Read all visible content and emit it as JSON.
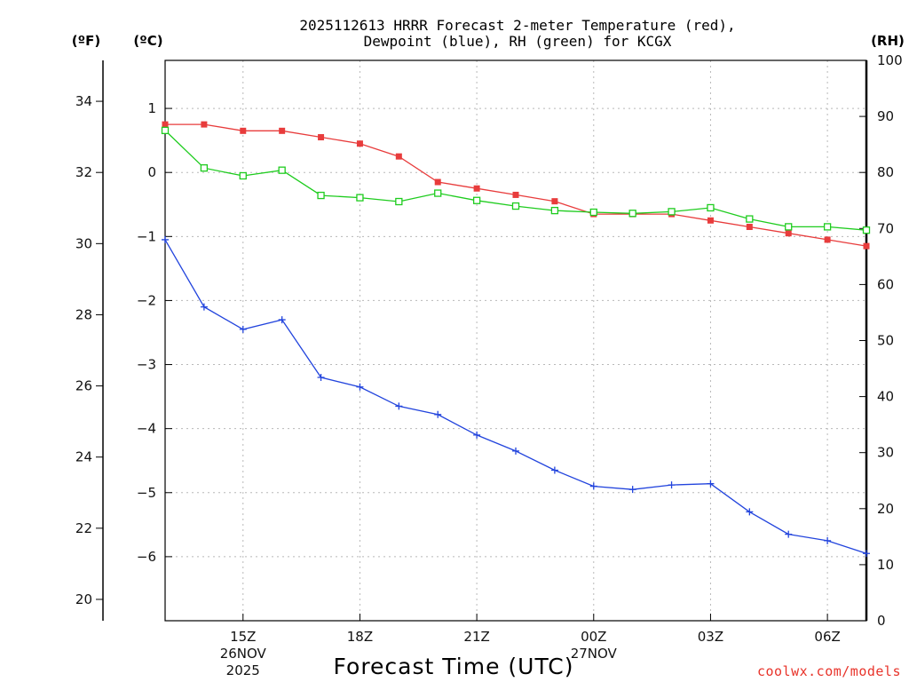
{
  "chart_data": {
    "type": "line",
    "title_line1": "2025112613 HRRR Forecast 2-meter Temperature (red),",
    "title_line2": "Dewpoint (blue), RH (green) for KCGX",
    "xlabel": "Forecast Time (UTC)",
    "credit": "coolwx.com/models",
    "units": {
      "f": "(ºF)",
      "c": "(ºC)",
      "rh": "(RH)"
    },
    "x_hours": [
      13,
      14,
      15,
      16,
      17,
      18,
      19,
      20,
      21,
      22,
      23,
      24,
      25,
      26,
      27,
      28,
      29,
      30,
      31
    ],
    "xlim": [
      13,
      31
    ],
    "x_ticks": [
      {
        "hour": 15,
        "label": "15Z",
        "date": "26NOV",
        "year": "2025"
      },
      {
        "hour": 18,
        "label": "18Z"
      },
      {
        "hour": 21,
        "label": "21Z"
      },
      {
        "hour": 24,
        "label": "00Z",
        "date": "27NOV"
      },
      {
        "hour": 27,
        "label": "03Z"
      },
      {
        "hour": 30,
        "label": "06Z"
      }
    ],
    "celsius_axis": {
      "ylim": [
        -7,
        1.75
      ],
      "ticks": [
        "1",
        "0",
        "−1",
        "−2",
        "−3",
        "−4",
        "−5",
        "−6"
      ]
    },
    "fahrenheit_axis": {
      "ticks": [
        "34",
        "32",
        "30",
        "28",
        "26",
        "24",
        "22",
        "20"
      ]
    },
    "rh_axis": {
      "ylim": [
        0,
        100
      ],
      "ticks": [
        "0",
        "10",
        "20",
        "30",
        "40",
        "50",
        "60",
        "70",
        "80",
        "90",
        "100"
      ]
    },
    "series": [
      {
        "name": "Temperature",
        "axis": "celsius",
        "color": "#e83c3c",
        "marker": "filled-square",
        "values": [
          0.75,
          0.75,
          0.65,
          0.65,
          0.55,
          0.45,
          0.25,
          -0.15,
          -0.25,
          -0.35,
          -0.45,
          -0.65,
          -0.65,
          -0.65,
          -0.75,
          -0.85,
          -0.95,
          -1.05,
          -1.15
        ]
      },
      {
        "name": "Dewpoint",
        "axis": "celsius",
        "color": "#2244dd",
        "marker": "plus",
        "values": [
          -1.05,
          -2.1,
          -2.45,
          -2.3,
          -3.2,
          -3.35,
          -3.65,
          -3.78,
          -4.1,
          -4.35,
          -4.65,
          -4.9,
          -4.95,
          -4.88,
          -4.86,
          -5.3,
          -5.65,
          -5.75,
          -5.95
        ]
      },
      {
        "name": "RH",
        "axis": "rh",
        "color": "#1ecc1e",
        "marker": "open-square",
        "values": [
          87.5,
          80.8,
          79.4,
          80.4,
          75.9,
          75.5,
          74.8,
          76.3,
          75.0,
          74.0,
          73.2,
          72.9,
          72.7,
          73.0,
          73.7,
          71.7,
          70.3,
          70.3,
          69.7
        ]
      }
    ]
  }
}
